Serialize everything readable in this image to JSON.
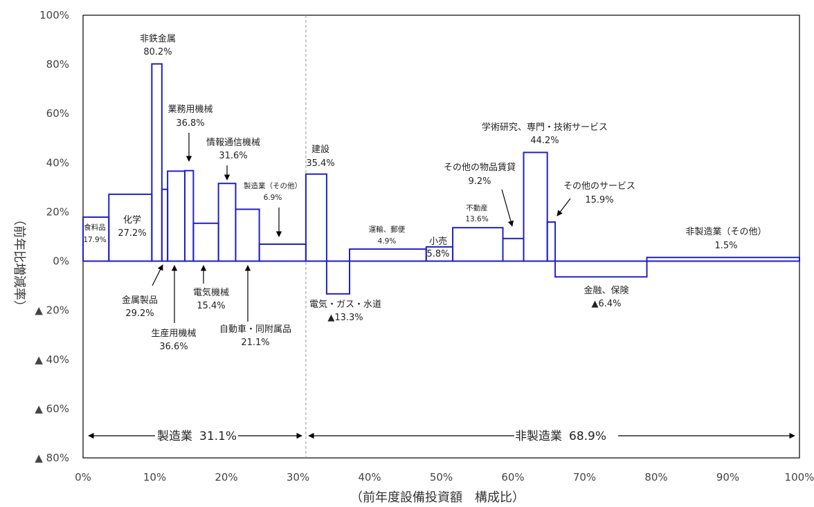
{
  "chart_data": {
    "type": "bar",
    "subtype": "variable-width (marimekko-style) bar chart",
    "xlabel": "（前年度設備投資額　構成比）",
    "ylabel": "（前年比増減率）",
    "xlim": [
      0,
      100
    ],
    "ylim": [
      -80,
      100
    ],
    "x_ticks": [
      {
        "v": 0,
        "label": "0%"
      },
      {
        "v": 10,
        "label": "10%"
      },
      {
        "v": 20,
        "label": "20%"
      },
      {
        "v": 30,
        "label": "30%"
      },
      {
        "v": 40,
        "label": "40%"
      },
      {
        "v": 50,
        "label": "50%"
      },
      {
        "v": 60,
        "label": "60%"
      },
      {
        "v": 70,
        "label": "70%"
      },
      {
        "v": 80,
        "label": "80%"
      },
      {
        "v": 90,
        "label": "90%"
      },
      {
        "v": 100,
        "label": "100%"
      }
    ],
    "y_ticks": [
      {
        "v": 100,
        "label": "100%"
      },
      {
        "v": 80,
        "label": "80%"
      },
      {
        "v": 60,
        "label": "60%"
      },
      {
        "v": 40,
        "label": "40%"
      },
      {
        "v": 20,
        "label": "20%"
      },
      {
        "v": 0,
        "label": "0%"
      },
      {
        "v": -20,
        "label": "▲ 20%"
      },
      {
        "v": -40,
        "label": "▲ 40%"
      },
      {
        "v": -60,
        "label": "▲ 60%"
      },
      {
        "v": -80,
        "label": "▲ 80%"
      }
    ],
    "bar_color": "#1f1fcc",
    "divider_x": 31.1,
    "sections": [
      {
        "name": "製造業",
        "share": "31.1%"
      },
      {
        "name": "非製造業",
        "share": "68.9%"
      }
    ],
    "series": [
      {
        "name": "食料品",
        "x0": 0.0,
        "x1": 3.6,
        "value": 17.9,
        "value_label": "17.9%"
      },
      {
        "name": "化学",
        "x0": 3.6,
        "x1": 9.6,
        "value": 27.2,
        "value_label": "27.2%"
      },
      {
        "name": "非鉄金属",
        "x0": 9.6,
        "x1": 11.0,
        "value": 80.2,
        "value_label": "80.2%"
      },
      {
        "name": "金属製品",
        "x0": 11.0,
        "x1": 11.8,
        "value": 29.2,
        "value_label": "29.2%"
      },
      {
        "name": "生産用機械",
        "x0": 11.8,
        "x1": 14.2,
        "value": 36.6,
        "value_label": "36.6%"
      },
      {
        "name": "業務用機械",
        "x0": 14.2,
        "x1": 15.4,
        "value": 36.8,
        "value_label": "36.8%"
      },
      {
        "name": "電気機械",
        "x0": 15.4,
        "x1": 18.9,
        "value": 15.4,
        "value_label": "15.4%"
      },
      {
        "name": "情報通信機械",
        "x0": 18.9,
        "x1": 21.3,
        "value": 31.6,
        "value_label": "31.6%"
      },
      {
        "name": "自動車・同附属品",
        "x0": 21.3,
        "x1": 24.6,
        "value": 21.1,
        "value_label": "21.1%"
      },
      {
        "name": "製造業（その他）",
        "x0": 24.6,
        "x1": 31.1,
        "value": 6.9,
        "value_label": "6.9%"
      },
      {
        "name": "建設",
        "x0": 31.1,
        "x1": 34.0,
        "value": 35.4,
        "value_label": "35.4%"
      },
      {
        "name": "電気・ガス・水道",
        "x0": 34.0,
        "x1": 37.2,
        "value": -13.3,
        "value_label": "▲13.3%"
      },
      {
        "name": "運輸、郵便",
        "x0": 37.2,
        "x1": 47.9,
        "value": 4.9,
        "value_label": "4.9%"
      },
      {
        "name": "小売",
        "x0": 47.9,
        "x1": 51.6,
        "value": 5.8,
        "value_label": "5.8%"
      },
      {
        "name": "不動産",
        "x0": 51.6,
        "x1": 58.6,
        "value": 13.6,
        "value_label": "13.6%"
      },
      {
        "name": "その他の物品賃貸",
        "x0": 58.6,
        "x1": 61.5,
        "value": 9.2,
        "value_label": "9.2%"
      },
      {
        "name": "学術研究、専門・技術サービス",
        "x0": 61.5,
        "x1": 64.8,
        "value": 44.2,
        "value_label": "44.2%"
      },
      {
        "name": "その他のサービス",
        "x0": 64.8,
        "x1": 65.9,
        "value": 15.9,
        "value_label": "15.9%"
      },
      {
        "name": "金融、保険",
        "x0": 65.9,
        "x1": 78.7,
        "value": -6.4,
        "value_label": "▲6.4%"
      },
      {
        "name": "非製造業（その他）",
        "x0": 78.7,
        "x1": 100.0,
        "value": 1.5,
        "value_label": "1.5%"
      }
    ]
  }
}
